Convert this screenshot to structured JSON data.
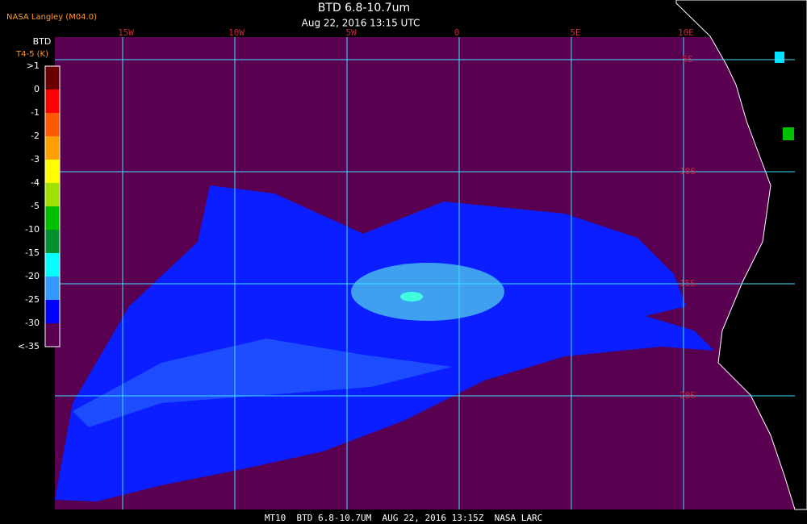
{
  "header": {
    "source": "NASA Langley (M04.0)",
    "title": "BTD 6.8-10.7um",
    "subtitle": "Aug 22, 2016 13:15 UTC"
  },
  "colorbar": {
    "title": "BTD",
    "unit": "T4-5 (K)",
    "labels": [
      ">1",
      "0",
      "-1",
      "-2",
      "-3",
      "-4",
      "-5",
      "-10",
      "-15",
      "-20",
      "-25",
      "-30",
      "<-35"
    ],
    "colors": [
      "#6a0000",
      "#ff0000",
      "#ff5a00",
      "#ffa000",
      "#ffff00",
      "#a0e000",
      "#00c000",
      "#009030",
      "#00ffff",
      "#3399ff",
      "#0000ff",
      "#5a0050"
    ]
  },
  "map": {
    "longitudes": [
      "15W",
      "10W",
      "5W",
      "0",
      "5E",
      "10E"
    ],
    "latitudes": [
      "5S",
      "10S",
      "15S",
      "20S"
    ]
  },
  "footer": "MT10  BTD 6.8-10.7UM  AUG 22, 2016 13:15Z  NASA LARC"
}
